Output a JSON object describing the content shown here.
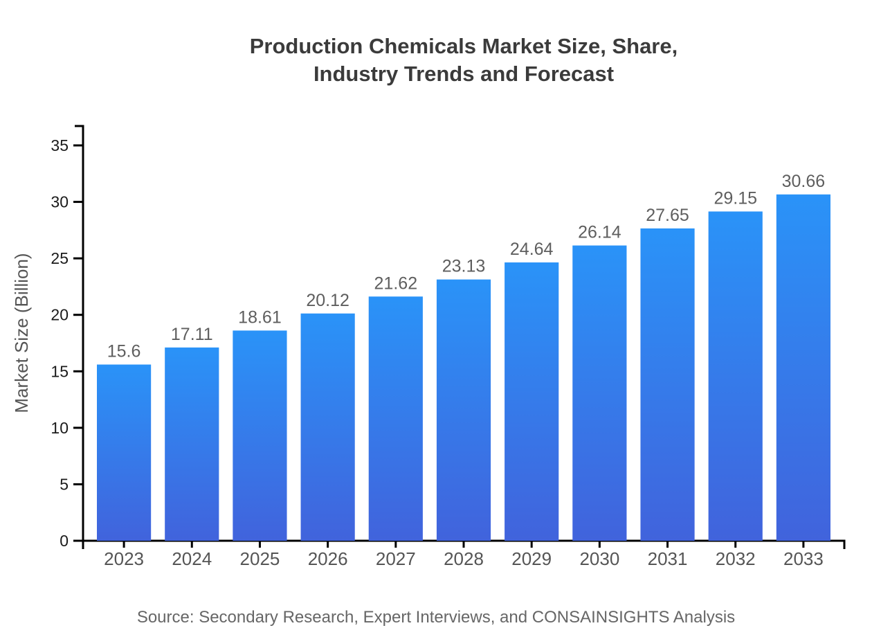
{
  "header": {
    "lines": [
      "Production Chemicals Market Size, Share,",
      "Industry Trends and Forecast"
    ]
  },
  "footer": {
    "source": "Source: Secondary Research, Expert Interviews, and CONSAINSIGHTS Analysis"
  },
  "chart_data": {
    "type": "bar",
    "title": "Production Chemicals Market Size, Share, Industry Trends and Forecast",
    "categories": [
      "2023",
      "2024",
      "2025",
      "2026",
      "2027",
      "2028",
      "2029",
      "2030",
      "2031",
      "2032",
      "2033"
    ],
    "values": [
      15.6,
      17.11,
      18.61,
      20.12,
      21.62,
      23.13,
      24.64,
      26.14,
      27.65,
      29.15,
      30.66
    ],
    "value_labels": [
      "15.6",
      "17.11",
      "18.61",
      "20.12",
      "21.62",
      "23.13",
      "24.64",
      "26.14",
      "27.65",
      "29.15",
      "30.66"
    ],
    "xlabel": "",
    "ylabel": "Market Size (Billion)",
    "ylim": [
      0,
      35
    ],
    "yticks": [
      0,
      5,
      10,
      15,
      20,
      25,
      30,
      35
    ],
    "grid": false,
    "legend": false,
    "bar_label_position": "above",
    "colors": {
      "bar_gradient_top": "#2A93F8",
      "bar_gradient_bottom": "#4163DC",
      "axis": "#000000",
      "ytick_label": "#1a1a1a",
      "xtick_label": "#555555",
      "value_label": "#5e5e5e",
      "title": "#3b3b3b",
      "ylabel": "#555555",
      "source": "#666666"
    }
  }
}
